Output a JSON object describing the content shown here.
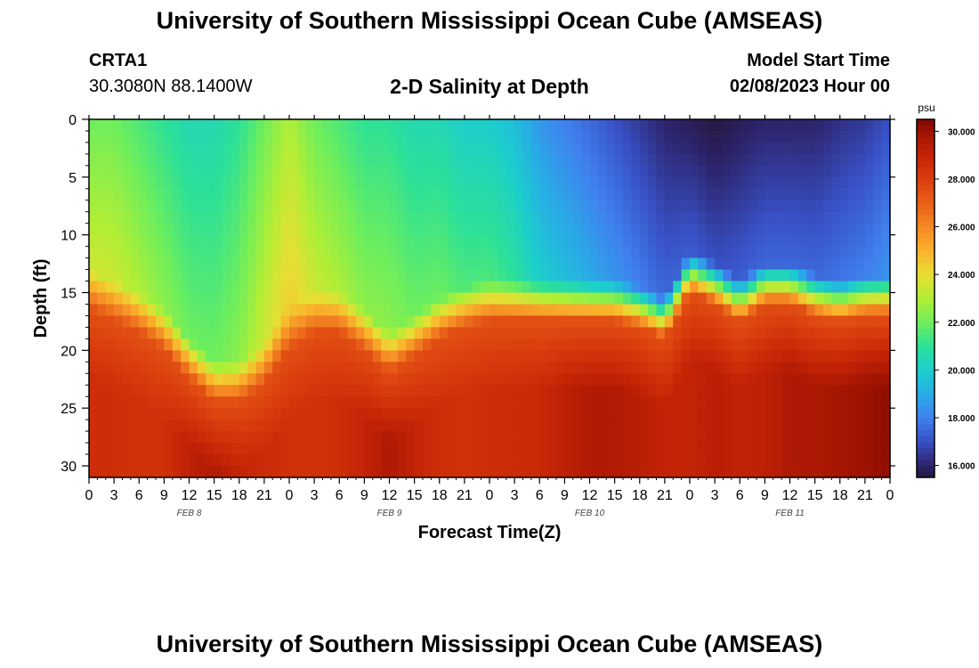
{
  "header": {
    "title": "University of Southern Mississippi Ocean Cube (AMSEAS)",
    "station_id": "CRTA1",
    "station_coords": "30.3080N  88.1400W",
    "subtitle": "2-D Salinity at Depth",
    "model_start_label": "Model Start Time",
    "model_start_value": "02/08/2023 Hour 00"
  },
  "footer": {
    "title": "University of Southern Mississippi Ocean Cube (AMSEAS)"
  },
  "chart_data": {
    "type": "heatmap",
    "title": "2-D Salinity at Depth",
    "xlabel": "Forecast Time(Z)",
    "ylabel": "Depth (ft)",
    "x_hours": [
      0,
      96
    ],
    "x_tick_labels": [
      "0",
      "3",
      "6",
      "9",
      "12",
      "15",
      "18",
      "21",
      "0",
      "3",
      "6",
      "9",
      "12",
      "15",
      "18",
      "21",
      "0",
      "3",
      "6",
      "9",
      "12",
      "15",
      "18",
      "21",
      "0",
      "3",
      "6",
      "9",
      "12",
      "15",
      "18",
      "21",
      "0"
    ],
    "date_labels": [
      {
        "label": "FEB 8",
        "hour": 12
      },
      {
        "label": "FEB 9",
        "hour": 36
      },
      {
        "label": "FEB 10",
        "hour": 60
      },
      {
        "label": "FEB 11",
        "hour": 84
      }
    ],
    "ylim": [
      0,
      31
    ],
    "y_ticks": [
      0,
      5,
      10,
      15,
      20,
      25,
      30
    ],
    "colorbar": {
      "unit": "psu",
      "range": [
        15.5,
        30.5
      ],
      "ticks": [
        "16.000",
        "18.000",
        "20.000",
        "22.000",
        "24.000",
        "26.000",
        "28.000",
        "30.000"
      ],
      "tick_values": [
        16,
        18,
        20,
        22,
        24,
        26,
        28,
        30
      ]
    },
    "field": {
      "time_hours": [
        0,
        3,
        6,
        9,
        12,
        15,
        18,
        21,
        24,
        27,
        30,
        33,
        36,
        39,
        42,
        45,
        48,
        51,
        54,
        57,
        60,
        63,
        66,
        69,
        72,
        75,
        78,
        81,
        84,
        87,
        90,
        93,
        96
      ],
      "surface_salinity_psu": [
        22,
        22,
        21.5,
        21,
        20.5,
        20.5,
        21,
        22,
        23,
        22,
        21.5,
        21,
        21,
        20.5,
        20.5,
        20,
        20,
        19.5,
        18.5,
        18,
        17.5,
        17,
        16.5,
        16,
        15.8,
        15.5,
        15.8,
        16,
        16,
        16,
        16.3,
        16.5,
        17
      ],
      "halocline_top_ft": [
        13,
        14,
        15,
        16.5,
        19,
        21,
        21,
        19.5,
        16.5,
        15,
        15,
        16.5,
        18.5,
        17,
        15.5,
        14.5,
        14,
        14,
        14,
        14,
        14,
        14,
        14.5,
        15.5,
        11.5,
        12.5,
        14,
        12.5,
        12.5,
        13.5,
        14,
        13.5,
        13.5
      ],
      "deep_salinity_psu": [
        28.6,
        28.6,
        28.5,
        28.5,
        29.2,
        29.5,
        29,
        28.7,
        28.5,
        28.5,
        28.6,
        29,
        29.6,
        29,
        28.6,
        28.5,
        28.6,
        28.7,
        28.8,
        29.2,
        29.5,
        29.5,
        29.3,
        29,
        29,
        29.3,
        29.1,
        29.2,
        29.6,
        29.6,
        29.8,
        30,
        30.2
      ]
    }
  }
}
